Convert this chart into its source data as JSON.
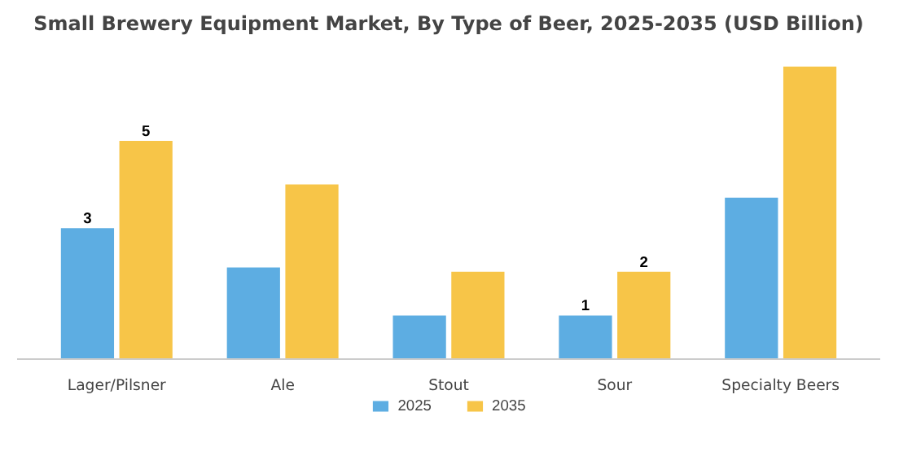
{
  "chart_data": {
    "type": "bar",
    "title": "Small Brewery Equipment Market, By Type of Beer, 2025-2035 (USD Billion)",
    "categories": [
      "Lager/Pilsner",
      "Ale",
      "Stout",
      "Sour",
      "Specialty Beers"
    ],
    "series": [
      {
        "name": "2025",
        "color": "#5dade2",
        "values": [
          3,
          2.1,
          1.0,
          1,
          3.7
        ],
        "value_labels": [
          "3",
          null,
          null,
          "1",
          null
        ]
      },
      {
        "name": "2035",
        "color": "#f7c548",
        "values": [
          5,
          4.0,
          2.0,
          2,
          6.7
        ],
        "value_labels": [
          "5",
          null,
          null,
          "2",
          null
        ]
      }
    ],
    "legend": "bottom"
  }
}
